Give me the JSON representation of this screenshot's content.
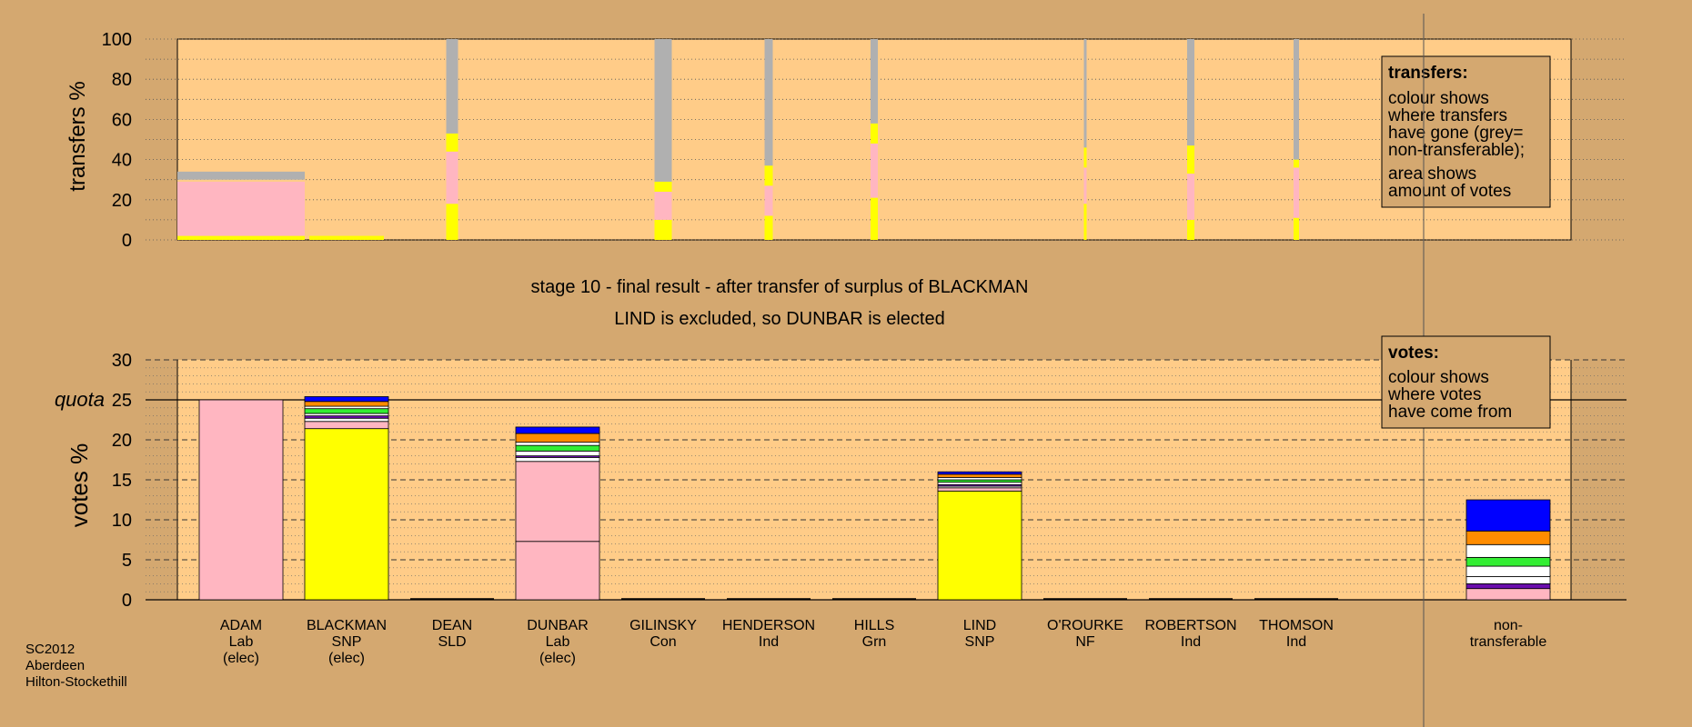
{
  "chart_data": [
    {
      "type": "bar",
      "ylabel": "transfers %",
      "ylim": [
        0,
        100
      ],
      "yticks": [
        0,
        20,
        40,
        60,
        80,
        100
      ],
      "categories": [
        "ADAM",
        "BLACKMAN",
        "DEAN",
        "DUNBAR",
        "GILINSKY",
        "HENDERSON",
        "HILLS",
        "LIND",
        "O'ROURKE",
        "ROBERTSON",
        "THOMSON"
      ],
      "bars": [
        {
          "category": "ADAM",
          "width_votes": "wide",
          "segments": [
            {
              "color": "#ffff00",
              "value": 2
            },
            {
              "color": "#ffb6c1",
              "value": 27
            },
            {
              "color": "#ffcc88",
              "value": 1
            },
            {
              "color": "#b0b0b0",
              "value": 4
            }
          ]
        },
        {
          "category": "BLACKMAN",
          "segments": [
            {
              "color": "#ffff00",
              "value": 2
            }
          ]
        },
        {
          "category": "DEAN",
          "segments": [
            {
              "color": "#ffff00",
              "value": 18
            },
            {
              "color": "#ffb6c1",
              "value": 26
            },
            {
              "color": "#ffff00",
              "value": 9
            },
            {
              "color": "#b0b0b0",
              "value": 47
            }
          ]
        },
        {
          "category": "DUNBAR",
          "segments": []
        },
        {
          "category": "GILINSKY",
          "segments": [
            {
              "color": "#ffff00",
              "value": 10
            },
            {
              "color": "#ffb6c1",
              "value": 14
            },
            {
              "color": "#ffff00",
              "value": 5
            },
            {
              "color": "#b0b0b0",
              "value": 71
            }
          ]
        },
        {
          "category": "HENDERSON",
          "segments": [
            {
              "color": "#ffff00",
              "value": 12
            },
            {
              "color": "#ffb6c1",
              "value": 15
            },
            {
              "color": "#ffff00",
              "value": 10
            },
            {
              "color": "#b0b0b0",
              "value": 63
            }
          ]
        },
        {
          "category": "HILLS",
          "segments": [
            {
              "color": "#ffff00",
              "value": 21
            },
            {
              "color": "#ffb6c1",
              "value": 27
            },
            {
              "color": "#ffff00",
              "value": 10
            },
            {
              "color": "#b0b0b0",
              "value": 42
            }
          ]
        },
        {
          "category": "LIND",
          "segments": []
        },
        {
          "category": "O'ROURKE",
          "segments": [
            {
              "color": "#ffff00",
              "value": 18
            },
            {
              "color": "#ffb6c1",
              "value": 18
            },
            {
              "color": "#ffff00",
              "value": 10
            },
            {
              "color": "#b0b0b0",
              "value": 54
            }
          ]
        },
        {
          "category": "ROBERTSON",
          "segments": [
            {
              "color": "#ffff00",
              "value": 10
            },
            {
              "color": "#ffb6c1",
              "value": 23
            },
            {
              "color": "#ffff00",
              "value": 14
            },
            {
              "color": "#b0b0b0",
              "value": 53
            }
          ]
        },
        {
          "category": "THOMSON",
          "segments": [
            {
              "color": "#ffff00",
              "value": 11
            },
            {
              "color": "#ffb6c1",
              "value": 25
            },
            {
              "color": "#ffff00",
              "value": 4
            },
            {
              "color": "#b0b0b0",
              "value": 60
            }
          ]
        }
      ],
      "legend": {
        "title": "transfers:",
        "lines1": [
          "colour shows",
          "where transfers",
          "have gone (grey=",
          "non-transferable);"
        ],
        "lines2": [
          "area shows",
          "amount of votes"
        ]
      }
    },
    {
      "type": "bar",
      "ylabel": "votes %",
      "ylim": [
        0,
        30
      ],
      "yticks": [
        0,
        5,
        10,
        15,
        20,
        25,
        30
      ],
      "quota": 25,
      "quota_label": "quota",
      "categories": [
        {
          "name": "ADAM",
          "party": "Lab",
          "status": "(elec)"
        },
        {
          "name": "BLACKMAN",
          "party": "SNP",
          "status": "(elec)"
        },
        {
          "name": "DEAN",
          "party": "SLD",
          "status": ""
        },
        {
          "name": "DUNBAR",
          "party": "Lab",
          "status": "(elec)"
        },
        {
          "name": "GILINSKY",
          "party": "Con",
          "status": ""
        },
        {
          "name": "HENDERSON",
          "party": "Ind",
          "status": ""
        },
        {
          "name": "HILLS",
          "party": "Grn",
          "status": ""
        },
        {
          "name": "LIND",
          "party": "SNP",
          "status": ""
        },
        {
          "name": "O'ROURKE",
          "party": "NF",
          "status": ""
        },
        {
          "name": "ROBERTSON",
          "party": "Ind",
          "status": ""
        },
        {
          "name": "THOMSON",
          "party": "Ind",
          "status": ""
        },
        {
          "name": "non-",
          "party": "transferable",
          "status": ""
        }
      ],
      "bars": [
        {
          "segments": [
            {
              "color": "#ffb6c1",
              "value": 25
            }
          ]
        },
        {
          "segments": [
            {
              "color": "#ffff00",
              "value": 21.4
            },
            {
              "color": "#ffb6c1",
              "value": 0.9
            },
            {
              "color": "#ffffff",
              "value": 0.4
            },
            {
              "color": "#6a0dad",
              "value": 0.3
            },
            {
              "color": "#ffffff",
              "value": 0.3
            },
            {
              "color": "#33ee33",
              "value": 0.6
            },
            {
              "color": "#ffffff",
              "value": 0.3
            },
            {
              "color": "#ff8c00",
              "value": 0.6
            },
            {
              "color": "#0000ff",
              "value": 0.6
            }
          ]
        },
        {
          "segments": []
        },
        {
          "segments": [
            {
              "color": "#ffb6c1",
              "value": 7.3
            },
            {
              "color": "#ffb6c1",
              "value": 10
            },
            {
              "color": "#ffffff",
              "value": 0.5
            },
            {
              "color": "#6a0dad",
              "value": 0.2
            },
            {
              "color": "#ffffff",
              "value": 0.6
            },
            {
              "color": "#33ee33",
              "value": 0.7
            },
            {
              "color": "#ffffff",
              "value": 0.4
            },
            {
              "color": "#ff8c00",
              "value": 1.1
            },
            {
              "color": "#0000ff",
              "value": 0.8
            }
          ]
        },
        {
          "segments": []
        },
        {
          "segments": []
        },
        {
          "segments": []
        },
        {
          "segments": [
            {
              "color": "#ffff00",
              "value": 13.6
            },
            {
              "color": "#ffb6c1",
              "value": 0.4
            },
            {
              "color": "#ffffff",
              "value": 0.2
            },
            {
              "color": "#6a0dad",
              "value": 0.2
            },
            {
              "color": "#ffffff",
              "value": 0.3
            },
            {
              "color": "#33ee33",
              "value": 0.3
            },
            {
              "color": "#ffffff",
              "value": 0.3
            },
            {
              "color": "#ff8c00",
              "value": 0.4
            },
            {
              "color": "#0000ff",
              "value": 0.3
            }
          ]
        },
        {
          "segments": []
        },
        {
          "segments": []
        },
        {
          "segments": []
        },
        {
          "segments": [
            {
              "color": "#ffb6c1",
              "value": 1.4
            },
            {
              "color": "#6a0dad",
              "value": 0.6
            },
            {
              "color": "#ffffff",
              "value": 0.9
            },
            {
              "color": "#ffffff",
              "value": 1.3
            },
            {
              "color": "#33ee33",
              "value": 1.1
            },
            {
              "color": "#ffffff",
              "value": 1.6
            },
            {
              "color": "#ff8c00",
              "value": 1.7
            },
            {
              "color": "#0000ff",
              "value": 3.9
            }
          ]
        }
      ],
      "legend": {
        "title": "votes:",
        "lines": [
          "colour shows",
          "where votes",
          "have come from"
        ]
      }
    }
  ],
  "stage_title": "stage 10 - final result - after transfer of surplus of BLACKMAN",
  "stage_subtitle": "LIND is excluded, so DUNBAR is elected",
  "footer": [
    "SC2012",
    "Aberdeen",
    "Hilton-Stockethill"
  ],
  "colors": {
    "background": "#d4a870",
    "plot": "#ffcc88"
  }
}
